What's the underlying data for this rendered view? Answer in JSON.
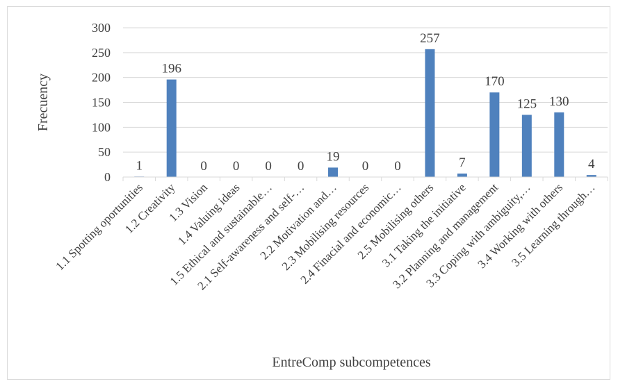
{
  "chart_data": {
    "type": "bar",
    "title": "",
    "xlabel": "EntreComp subcompetences",
    "ylabel": "Frecuency",
    "ylim": [
      0,
      300
    ],
    "yticks": [
      0,
      50,
      100,
      150,
      200,
      250,
      300
    ],
    "grid": true,
    "legend": "none",
    "bar_color": "#4f81bd",
    "categories": [
      "1.1 Spotting oportunities",
      "1.2 Creativity",
      "1.3 Vision",
      "1.4 Valuing ideas",
      "1.5 Ethical and sustainable…",
      "2.1 Self-awareness and self-…",
      "2.2 Motivation and…",
      "2.3 Mobilising resources",
      "2.4 Finacial and economic…",
      "2.5 Mobilising others",
      "3.1 Taking the initiative",
      "3.2 Planning and management",
      "3.3 Coping with ambiguity,…",
      "3.4 Working with others",
      "3.5 Learning through…"
    ],
    "values": [
      1,
      196,
      0,
      0,
      0,
      0,
      19,
      0,
      0,
      257,
      7,
      170,
      125,
      130,
      4
    ],
    "data_labels": [
      "1",
      "196",
      "0",
      "0",
      "0",
      "0",
      "19",
      "0",
      "0",
      "257",
      "7",
      "170",
      "125",
      "130",
      "4"
    ]
  }
}
